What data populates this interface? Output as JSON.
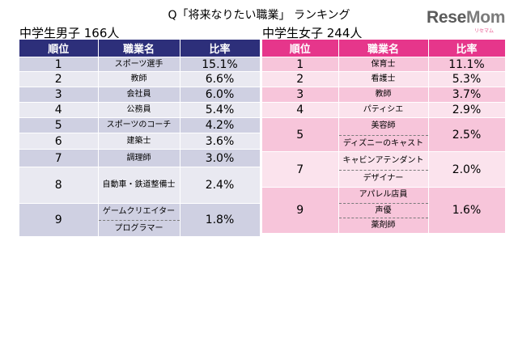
{
  "title": "Q「将来なりたい職業」 ランキング",
  "logo": {
    "part1": "Rese",
    "part2": "Mom",
    "dot": "リセマム"
  },
  "boys": {
    "heading": "中学生男子 166人",
    "headers": {
      "rank": "順位",
      "job": "職業名",
      "rate": "比率"
    },
    "rows": [
      {
        "rank": "1",
        "jobs": [
          "スポーツ選手"
        ],
        "rate": "15.1%"
      },
      {
        "rank": "2",
        "jobs": [
          "教師"
        ],
        "rate": "6.6%"
      },
      {
        "rank": "3",
        "jobs": [
          "会社員"
        ],
        "rate": "6.0%"
      },
      {
        "rank": "4",
        "jobs": [
          "公務員"
        ],
        "rate": "5.4%"
      },
      {
        "rank": "5",
        "jobs": [
          "スポーツのコーチ"
        ],
        "rate": "4.2%"
      },
      {
        "rank": "6",
        "jobs": [
          "建築士"
        ],
        "rate": "3.6%"
      },
      {
        "rank": "7",
        "jobs": [
          "調理師"
        ],
        "rate": "3.0%"
      },
      {
        "rank": "8",
        "jobs": [
          "自動車・鉄道整備士"
        ],
        "rate": "2.4%"
      },
      {
        "rank": "9",
        "jobs": [
          "ゲームクリエイター",
          "プログラマー"
        ],
        "rate": "1.8%"
      }
    ]
  },
  "girls": {
    "heading": "中学生女子 244人",
    "headers": {
      "rank": "順位",
      "job": "職業名",
      "rate": "比率"
    },
    "rows": [
      {
        "rank": "1",
        "jobs": [
          "保育士"
        ],
        "rate": "11.1%"
      },
      {
        "rank": "2",
        "jobs": [
          "看護士"
        ],
        "rate": "5.3%"
      },
      {
        "rank": "3",
        "jobs": [
          "教師"
        ],
        "rate": "3.7%"
      },
      {
        "rank": "4",
        "jobs": [
          "パティシエ"
        ],
        "rate": "2.9%"
      },
      {
        "rank": "5",
        "jobs": [
          "美容師",
          "ディズニーのキャスト"
        ],
        "rate": "2.5%"
      },
      {
        "rank": "7",
        "jobs": [
          "キャビンアテンダント",
          "デザイナー"
        ],
        "rate": "2.0%"
      },
      {
        "rank": "9",
        "jobs": [
          "アパレル店員",
          "声優",
          "薬剤師"
        ],
        "rate": "1.6%"
      }
    ]
  }
}
